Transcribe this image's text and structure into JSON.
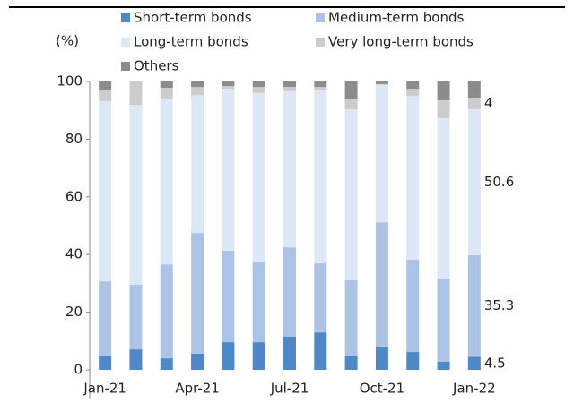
{
  "chart_data": {
    "type": "stacked_bar",
    "y_unit": "(%)",
    "categories": [
      "Jan-21",
      null,
      null,
      "Apr-21",
      null,
      null,
      "Jul-21",
      null,
      null,
      "Oct-21",
      null,
      null,
      "Jan-22"
    ],
    "series": [
      {
        "name": "Short-term bonds",
        "color": "#4f88c6",
        "label": "last",
        "values": [
          5.0,
          7.1,
          4.0,
          5.6,
          9.6,
          9.6,
          11.5,
          13.0,
          5.0,
          8.1,
          6.2,
          2.8,
          4.5
        ]
      },
      {
        "name": "Medium-term bonds",
        "color": "#adc3e5",
        "label": "last",
        "values": [
          25.7,
          22.4,
          32.6,
          41.9,
          31.7,
          28.0,
          31.0,
          24.0,
          26.1,
          43.1,
          32.0,
          28.6,
          35.3
        ]
      },
      {
        "name": "Long-term bonds",
        "color": "#dde8f7",
        "label": "last",
        "values": [
          62.5,
          62.4,
          57.5,
          47.8,
          56.2,
          58.4,
          54.1,
          59.9,
          59.3,
          47.6,
          56.8,
          55.9,
          50.6
        ]
      },
      {
        "name": "Very long-term bonds",
        "color": "#cccccc",
        "label": "last",
        "values": [
          3.7,
          8.1,
          3.7,
          2.8,
          0.9,
          2.1,
          1.5,
          1.2,
          3.7,
          0.3,
          2.5,
          6.2,
          4.0
        ]
      },
      {
        "name": "Others",
        "color": "#8c8c8c",
        "values": [
          3.1,
          0,
          2.2,
          1.9,
          1.6,
          1.9,
          1.9,
          1.9,
          5.9,
          0.9,
          2.5,
          6.5,
          5.6
        ]
      }
    ],
    "ylim": [
      0,
      100
    ],
    "yticks": [
      0,
      20,
      40,
      60,
      80,
      100
    ]
  }
}
